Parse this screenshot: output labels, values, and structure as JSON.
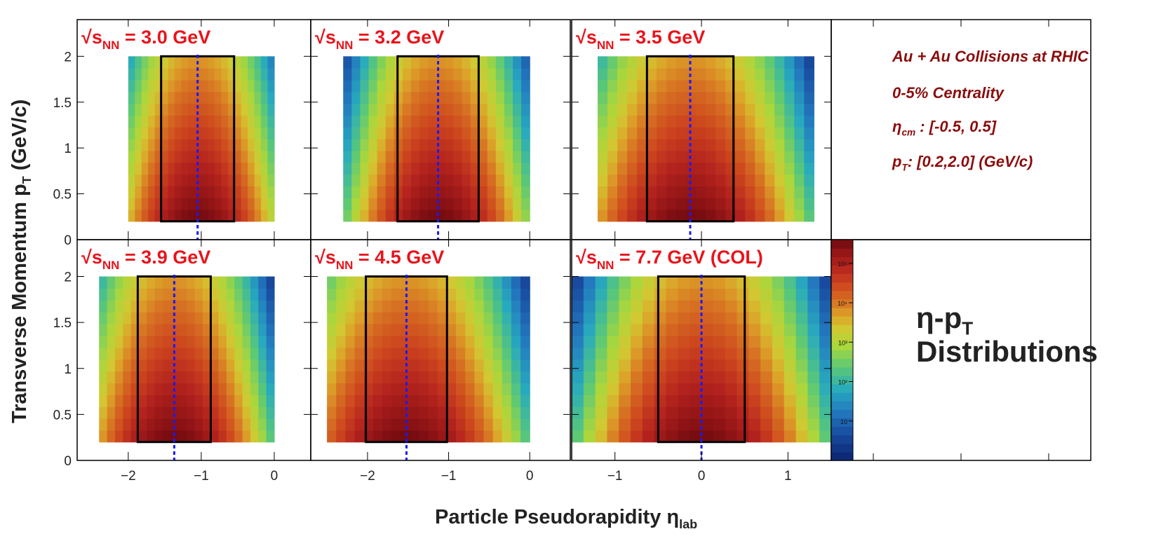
{
  "axes": {
    "ylabel": "Transverse Momentum p",
    "ylabel_sub": "T",
    "ylabel_unit": " (GeV/c)",
    "xlabel": "Particle Pseudorapidity η",
    "xlabel_sub": "lab"
  },
  "info": {
    "line1": "Au + Au Collisions at RHIC",
    "line2": "0-5% Centrality",
    "line3_sym": "η",
    "line3_sub": "cm",
    "line3_rest": " : [-0.5, 0.5]",
    "line4_sym": "p",
    "line4_sub": "T",
    "line4_rest": ": [0.2,2.0] (GeV/c)"
  },
  "dist_title": {
    "line1_sym": "η-p",
    "line1_sub": "T",
    "line2": "Distributions"
  },
  "colors": {
    "panel_label": "#e8141c",
    "info_text": "#8b0d0d",
    "box": "#000000",
    "center_line": "#1a1aff"
  },
  "chart_data": [
    {
      "type": "heatmap",
      "energy_label": "3.0 GeV",
      "label_suffix": "",
      "xlim": [
        -2.7,
        0.5
      ],
      "ylim": [
        0,
        2.4
      ],
      "data_x_range": [
        -2.0,
        0.0
      ],
      "peak_eta": -1.05,
      "window": [
        -1.55,
        -0.55
      ],
      "window_pt": [
        0.2,
        2.0
      ],
      "xticks": [
        -2,
        -1,
        0
      ],
      "yticks": [
        0.5,
        1,
        1.5,
        2
      ],
      "show_x_ticklabels": false,
      "show_y_ticklabels": true
    },
    {
      "type": "heatmap",
      "energy_label": "3.2 GeV",
      "label_suffix": "",
      "xlim": [
        -2.7,
        0.5
      ],
      "ylim": [
        0,
        2.4
      ],
      "data_x_range": [
        -2.3,
        0.0
      ],
      "peak_eta": -1.13,
      "window": [
        -1.63,
        -0.63
      ],
      "window_pt": [
        0.2,
        2.0
      ],
      "xticks": [
        -2,
        -1,
        0
      ],
      "yticks": [
        0.5,
        1,
        1.5,
        2
      ],
      "show_x_ticklabels": false,
      "show_y_ticklabels": false
    },
    {
      "type": "heatmap",
      "energy_label": "3.5 GeV",
      "label_suffix": "",
      "xlim": [
        -1.5,
        1.5
      ],
      "ylim": [
        0,
        2.4
      ],
      "data_x_range": [
        -1.2,
        1.3
      ],
      "peak_eta": -0.13,
      "window": [
        -0.63,
        0.37
      ],
      "window_pt": [
        0.2,
        2.0
      ],
      "xticks": [
        -1,
        0,
        1
      ],
      "yticks": [
        0.5,
        1,
        1.5,
        2
      ],
      "show_x_ticklabels": false,
      "show_y_ticklabels": false
    },
    {
      "type": "heatmap",
      "energy_label": "3.9 GeV",
      "label_suffix": "",
      "xlim": [
        -2.7,
        0.5
      ],
      "ylim": [
        0,
        2.4
      ],
      "data_x_range": [
        -2.4,
        0.0
      ],
      "peak_eta": -1.37,
      "window": [
        -1.87,
        -0.87
      ],
      "window_pt": [
        0.2,
        2.0
      ],
      "xticks": [
        -2,
        -1,
        0
      ],
      "yticks": [
        0.5,
        1,
        1.5,
        2
      ],
      "show_x_ticklabels": true,
      "show_y_ticklabels": true
    },
    {
      "type": "heatmap",
      "energy_label": "4.5 GeV",
      "label_suffix": "",
      "xlim": [
        -2.7,
        0.5
      ],
      "ylim": [
        0,
        2.4
      ],
      "data_x_range": [
        -2.5,
        0.0
      ],
      "peak_eta": -1.52,
      "window": [
        -2.02,
        -1.02
      ],
      "window_pt": [
        0.2,
        2.0
      ],
      "xticks": [
        -2,
        -1,
        0
      ],
      "yticks": [
        0.5,
        1,
        1.5,
        2
      ],
      "show_x_ticklabels": true,
      "show_y_ticklabels": false
    },
    {
      "type": "heatmap",
      "energy_label": "7.7 GeV",
      "label_suffix": " (COL)",
      "xlim": [
        -1.5,
        1.5
      ],
      "ylim": [
        0,
        2.4
      ],
      "data_x_range": [
        -1.5,
        1.5
      ],
      "peak_eta": 0.0,
      "window": [
        -0.5,
        0.5
      ],
      "window_pt": [
        0.2,
        2.0
      ],
      "xticks": [
        -1,
        0,
        1
      ],
      "yticks": [
        0.5,
        1,
        1.5,
        2
      ],
      "show_x_ticklabels": true,
      "show_y_ticklabels": false
    }
  ],
  "y_tick_labels": [
    "0",
    "0.5",
    "1",
    "1.5",
    "2"
  ],
  "y_tick_values": [
    0,
    0.5,
    1,
    1.5,
    2
  ],
  "colorbar": {
    "scale": "log",
    "tick_labels": [
      "10",
      "10²",
      "10³",
      "10⁴",
      "10⁵"
    ],
    "tick_values": [
      1,
      2,
      3,
      4,
      5
    ],
    "range": [
      0,
      5.6
    ]
  }
}
